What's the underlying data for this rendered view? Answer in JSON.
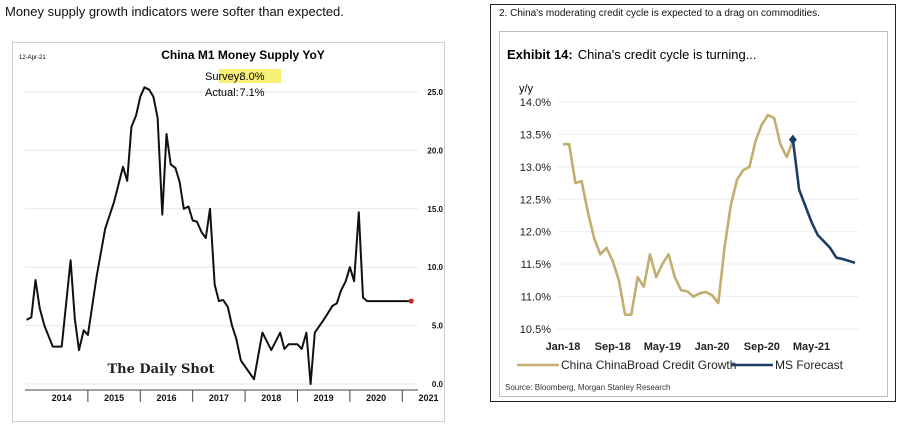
{
  "headline": "Money supply growth indicators were softer than expected.",
  "panel_left": {
    "date_tag": "12-Apr-21",
    "title": "China M1 Money Supply YoY",
    "annotation": {
      "survey_label": "Survey:",
      "survey_value": "8.0%",
      "actual_label": "Actual:",
      "actual_value": "7.1%"
    },
    "watermark": "The Daily Shot",
    "colors": {
      "line": "#111111",
      "highlight": "#f6f076",
      "end_dot": "#cc2222"
    }
  },
  "panel_right": {
    "caption": "2. China's moderating credit cycle is expected to a drag on commodities.",
    "exhibit_label": "Exhibit 14:",
    "exhibit_title": "China's credit cycle is turning...",
    "source": "Source: Bloomberg, Morgan Stanley Research",
    "colors": {
      "history": "#c2ae6e",
      "forecast": "#1b3d66"
    }
  },
  "chart_data": [
    {
      "type": "line",
      "title": "China M1 Money Supply YoY",
      "x_ticks": [
        "2014",
        "2015",
        "2016",
        "2017",
        "2018",
        "2019",
        "2020",
        "2021"
      ],
      "y_ticks": [
        "25.0",
        "20.0",
        "15.0",
        "10.0",
        "5.0",
        "0.0"
      ],
      "ylim": [
        0,
        25
      ],
      "xlim": [
        2013.8,
        2021.3
      ],
      "grid": true,
      "series": [
        {
          "x": [
            2013.83,
            2013.92,
            2014.0,
            2014.08,
            2014.17,
            2014.33,
            2014.5,
            2014.67,
            2014.75,
            2014.83,
            2014.92,
            2015.0,
            2015.17,
            2015.33,
            2015.5,
            2015.67,
            2015.75,
            2015.83,
            2015.92,
            2016.0,
            2016.08,
            2016.17,
            2016.25,
            2016.33,
            2016.42,
            2016.5,
            2016.58,
            2016.67,
            2016.75,
            2016.83,
            2016.92,
            2017.0,
            2017.08,
            2017.17,
            2017.25,
            2017.33,
            2017.42,
            2017.5,
            2017.58,
            2017.67,
            2017.75,
            2017.83,
            2017.92,
            2018.0,
            2018.17,
            2018.33,
            2018.5,
            2018.67,
            2018.75,
            2018.83,
            2018.92,
            2019.0,
            2019.08,
            2019.17,
            2019.25,
            2019.33,
            2019.5,
            2019.67,
            2019.75,
            2019.83,
            2019.92,
            2020.0,
            2020.08,
            2020.17,
            2020.25,
            2020.33,
            2020.5,
            2020.67,
            2020.75,
            2020.83,
            2020.92,
            2021.0,
            2021.08,
            2021.17
          ],
          "values": [
            5.5,
            5.7,
            8.9,
            6.5,
            5.0,
            3.2,
            3.2,
            10.6,
            5.6,
            2.9,
            4.6,
            4.2,
            9.3,
            13.3,
            15.6,
            18.6,
            17.4,
            22.0,
            23.0,
            24.6,
            25.4,
            25.2,
            24.6,
            22.8,
            14.5,
            21.4,
            18.8,
            18.5,
            17.3,
            15.0,
            15.2,
            14.0,
            13.9,
            13.0,
            12.5,
            15.0,
            8.5,
            7.1,
            7.2,
            6.6,
            5.0,
            3.9,
            2.0,
            1.5,
            0.4,
            4.4,
            2.9,
            4.4,
            3.0,
            3.4,
            3.4,
            3.4,
            3.0,
            4.4,
            0.0,
            4.4,
            5.5,
            6.7,
            6.9,
            8.0,
            8.8,
            10.0,
            8.8,
            14.7,
            7.4,
            7.1,
            7.1,
            7.1,
            7.1,
            7.1,
            7.1,
            7.1,
            7.1,
            7.1
          ]
        }
      ]
    },
    {
      "type": "line",
      "title": "China's credit cycle is turning...",
      "ylabel": "y/y",
      "x_ticks": [
        "Jan-18",
        "Sep-18",
        "May-19",
        "Jan-20",
        "Sep-20",
        "May-21"
      ],
      "y_ticks": [
        "14.0%",
        "13.5%",
        "13.0%",
        "12.5%",
        "12.0%",
        "11.5%",
        "11.0%",
        "10.5%"
      ],
      "ylim": [
        10.5,
        14.0
      ],
      "legend": "bottom",
      "series": [
        {
          "name": "China ChinaBroad Credit Growth",
          "x": [
            "Jan-18",
            "Feb-18",
            "Mar-18",
            "Apr-18",
            "May-18",
            "Jun-18",
            "Jul-18",
            "Aug-18",
            "Sep-18",
            "Oct-18",
            "Nov-18",
            "Dec-18",
            "Jan-19",
            "Feb-19",
            "Mar-19",
            "Apr-19",
            "May-19",
            "Jun-19",
            "Jul-19",
            "Aug-19",
            "Sep-19",
            "Oct-19",
            "Nov-19",
            "Dec-19",
            "Jan-20",
            "Feb-20",
            "Mar-20",
            "Apr-20",
            "May-20",
            "Jun-20",
            "Jul-20",
            "Aug-20",
            "Sep-20",
            "Oct-20",
            "Nov-20",
            "Dec-20",
            "Jan-21",
            "Feb-21"
          ],
          "values": [
            13.35,
            13.35,
            12.75,
            12.78,
            12.3,
            11.9,
            11.65,
            11.75,
            11.55,
            11.25,
            10.72,
            10.72,
            11.3,
            11.15,
            11.65,
            11.3,
            11.5,
            11.65,
            11.3,
            11.1,
            11.08,
            11.0,
            11.05,
            11.07,
            11.02,
            10.9,
            11.75,
            12.4,
            12.8,
            12.95,
            13.0,
            13.4,
            13.65,
            13.8,
            13.75,
            13.35,
            13.15,
            13.4
          ]
        },
        {
          "name": "MS Forecast",
          "x": [
            "Feb-21",
            "Mar-21",
            "Apr-21",
            "May-21",
            "Jun-21",
            "Jul-21",
            "Aug-21",
            "Sep-21",
            "Oct-21",
            "Nov-21",
            "Dec-21"
          ],
          "values": [
            13.42,
            12.65,
            12.4,
            12.15,
            11.95,
            11.85,
            11.75,
            11.6,
            11.58,
            11.55,
            11.52
          ]
        }
      ]
    }
  ]
}
